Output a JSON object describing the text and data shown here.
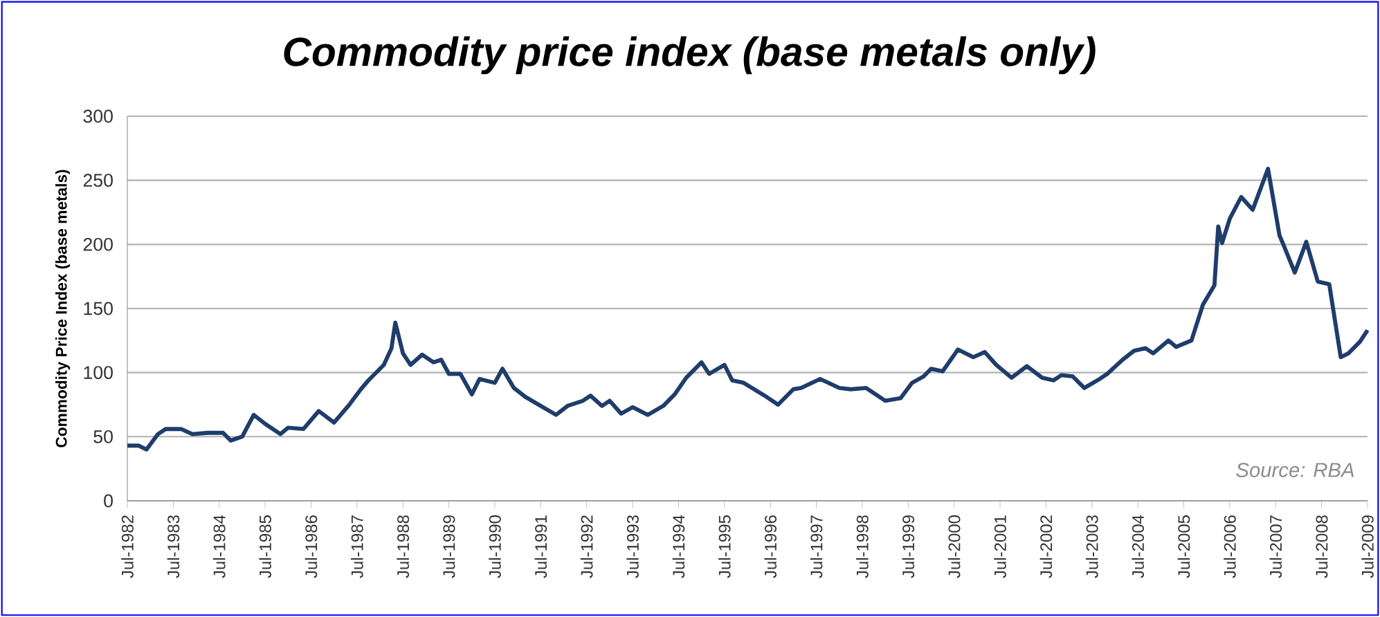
{
  "chart_data": {
    "type": "line",
    "title": "Commodity price index (base metals only)",
    "ylabel": "Commodity Price Index (base metals)",
    "x": [
      "1982-07",
      "1982-10",
      "1982-12",
      "1983-03",
      "1983-05",
      "1983-09",
      "1983-12",
      "1984-04",
      "1984-08",
      "1984-10",
      "1985-01",
      "1985-04",
      "1985-07",
      "1985-11",
      "1986-01",
      "1986-05",
      "1986-09",
      "1987-01",
      "1987-03",
      "1987-05",
      "1987-08",
      "1987-10",
      "1988-02",
      "1988-04",
      "1988-05",
      "1988-07",
      "1988-09",
      "1988-12",
      "1989-03",
      "1989-05",
      "1989-07",
      "1989-10",
      "1990-01",
      "1990-03",
      "1990-07",
      "1990-09",
      "1990-12",
      "1991-03",
      "1991-07",
      "1991-11",
      "1992-02",
      "1992-06",
      "1992-08",
      "1992-11",
      "1993-01",
      "1993-04",
      "1993-07",
      "1993-11",
      "1994-03",
      "1994-06",
      "1994-09",
      "1995-01",
      "1995-03",
      "1995-07",
      "1995-09",
      "1995-12",
      "1996-06",
      "1996-09",
      "1997-01",
      "1997-03",
      "1997-08",
      "1998-01",
      "1998-04",
      "1998-08",
      "1999-01",
      "1999-05",
      "1999-08",
      "1999-11",
      "2000-01",
      "2000-04",
      "2000-08",
      "2000-12",
      "2001-03",
      "2001-06",
      "2001-10",
      "2002-02",
      "2002-06",
      "2002-09",
      "2002-11",
      "2003-02",
      "2003-05",
      "2003-09",
      "2003-11",
      "2004-03",
      "2004-06",
      "2004-09",
      "2004-11",
      "2005-03",
      "2005-05",
      "2005-09",
      "2005-12",
      "2006-03",
      "2006-04",
      "2006-05",
      "2006-07",
      "2006-10",
      "2007-01",
      "2007-05",
      "2007-08",
      "2007-09",
      "2007-12",
      "2008-03",
      "2008-06",
      "2008-09",
      "2008-12",
      "2009-02",
      "2009-05",
      "2009-07"
    ],
    "values": [
      43,
      43,
      40,
      52,
      56,
      56,
      52,
      53,
      53,
      47,
      50,
      67,
      60,
      52,
      57,
      56,
      70,
      61,
      68,
      75,
      87,
      94,
      106,
      119,
      139,
      115,
      106,
      114,
      108,
      110,
      99,
      99,
      83,
      95,
      92,
      103,
      88,
      81,
      74,
      67,
      74,
      78,
      82,
      74,
      78,
      68,
      73,
      67,
      74,
      83,
      96,
      108,
      99,
      106,
      94,
      92,
      81,
      75,
      87,
      88,
      95,
      88,
      87,
      88,
      78,
      80,
      92,
      97,
      103,
      101,
      118,
      112,
      116,
      106,
      96,
      105,
      96,
      94,
      98,
      97,
      88,
      95,
      99,
      110,
      117,
      119,
      115,
      125,
      120,
      125,
      153,
      168,
      214,
      201,
      220,
      237,
      227,
      259,
      207,
      200,
      178,
      202,
      171,
      169,
      112,
      115,
      124,
      133
    ],
    "color": "#1f3d6b",
    "marker": "none",
    "xlim": [
      "1982-07",
      "2009-07"
    ],
    "xticks": [
      {
        "value": "1982-07",
        "label": "Jul-1982"
      },
      {
        "value": "1983-07",
        "label": "Jul-1983"
      },
      {
        "value": "1984-07",
        "label": "Jul-1984"
      },
      {
        "value": "1985-07",
        "label": "Jul-1985"
      },
      {
        "value": "1986-07",
        "label": "Jul-1986"
      },
      {
        "value": "1987-07",
        "label": "Jul-1987"
      },
      {
        "value": "1988-07",
        "label": "Jul-1988"
      },
      {
        "value": "1989-07",
        "label": "Jul-1989"
      },
      {
        "value": "1990-07",
        "label": "Jul-1990"
      },
      {
        "value": "1991-07",
        "label": "Jul-1991"
      },
      {
        "value": "1992-07",
        "label": "Jul-1992"
      },
      {
        "value": "1993-07",
        "label": "Jul-1993"
      },
      {
        "value": "1994-07",
        "label": "Jul-1994"
      },
      {
        "value": "1995-07",
        "label": "Jul-1995"
      },
      {
        "value": "1996-07",
        "label": "Jul-1996"
      },
      {
        "value": "1997-07",
        "label": "Jul-1997"
      },
      {
        "value": "1998-07",
        "label": "Jul-1998"
      },
      {
        "value": "1999-07",
        "label": "Jul-1999"
      },
      {
        "value": "2000-07",
        "label": "Jul-2000"
      },
      {
        "value": "2001-07",
        "label": "Jul-2001"
      },
      {
        "value": "2002-07",
        "label": "Jul-2002"
      },
      {
        "value": "2003-07",
        "label": "Jul-2003"
      },
      {
        "value": "2004-07",
        "label": "Jul-2004"
      },
      {
        "value": "2005-07",
        "label": "Jul-2005"
      },
      {
        "value": "2006-07",
        "label": "Jul-2006"
      },
      {
        "value": "2007-07",
        "label": "Jul-2007"
      },
      {
        "value": "2008-07",
        "label": "Jul-2008"
      },
      {
        "value": "2009-07",
        "label": "Jul-2009"
      }
    ],
    "ylim": [
      0,
      300
    ],
    "yticks": [
      0,
      50,
      100,
      150,
      200,
      250,
      300
    ],
    "grid": "y",
    "annotations": [
      "Source: RBA"
    ]
  }
}
